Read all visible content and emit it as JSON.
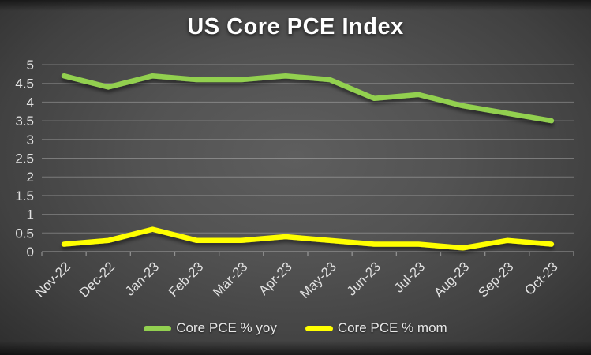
{
  "title": "US Core PCE Index",
  "colors": {
    "yoy_line": "#92d050",
    "mom_line": "#ffff00",
    "gridline": "rgba(255,255,255,0.28)",
    "axis_line": "rgba(255,255,255,0.38)",
    "tick_text": "#e2e2e2",
    "title_text": "#ffffff",
    "background_center": "#5e5e5e",
    "background_edge": "#1d1d1d"
  },
  "chart_data": {
    "type": "line",
    "title": "US Core PCE Index",
    "categories": [
      "Nov-22",
      "Dec-22",
      "Jan-23",
      "Feb-23",
      "Mar-23",
      "Apr-23",
      "May-23",
      "Jun-23",
      "Jul-23",
      "Aug-23",
      "Sep-23",
      "Oct-23"
    ],
    "series": [
      {
        "name": "Core PCE % yoy",
        "color": "#92d050",
        "values": [
          4.7,
          4.4,
          4.7,
          4.6,
          4.6,
          4.7,
          4.6,
          4.1,
          4.2,
          3.9,
          3.7,
          3.5
        ]
      },
      {
        "name": "Core PCE % mom",
        "color": "#ffff00",
        "values": [
          0.2,
          0.3,
          0.6,
          0.3,
          0.3,
          0.4,
          0.3,
          0.2,
          0.2,
          0.1,
          0.3,
          0.2
        ]
      }
    ],
    "xlabel": "",
    "ylabel": "",
    "ylim": [
      0,
      5
    ],
    "ytick_step": 0.5,
    "ytick_labels": [
      "0",
      "0.5",
      "1",
      "1.5",
      "2",
      "2.5",
      "3",
      "3.5",
      "4",
      "4.5",
      "5"
    ],
    "grid": true,
    "x_label_rotation_deg": -45,
    "legend_position": "bottom"
  },
  "legend": {
    "items": [
      {
        "label": "Core PCE % yoy",
        "color": "#92d050"
      },
      {
        "label": "Core PCE % mom",
        "color": "#ffff00"
      }
    ]
  }
}
